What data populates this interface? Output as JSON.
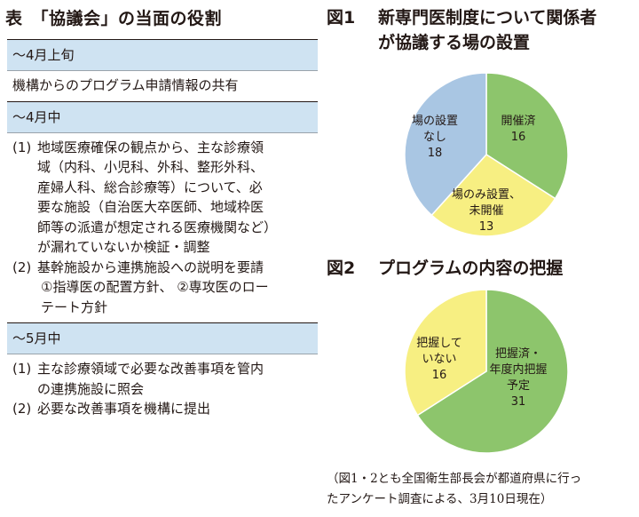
{
  "table": {
    "title": "表　「協議会」の当面の役割",
    "sections": [
      {
        "header": "〜4月上旬",
        "items": [
          {
            "num": "",
            "lines": [
              "機構からのプログラム申請情報の共有"
            ]
          }
        ]
      },
      {
        "header": "〜4月中",
        "items": [
          {
            "num": "(1)",
            "lines": [
              "地域医療確保の観点から、主な診療領",
              "域（内科、小児科、外科、整形外科、",
              "産婦人科、総合診療等）について、必",
              "要な施設（自治医大卒医師、地域枠医",
              "師等の派遣が想定される医療機関など）",
              "が漏れていないか検証・調整"
            ]
          },
          {
            "num": "(2)",
            "lines": [
              "基幹施設から連携施設への説明を要請",
              "①指導医の配置方針、 ②専攻医のロー",
              "テート方針"
            ]
          }
        ]
      },
      {
        "header": "〜5月中",
        "items": [
          {
            "num": "(1)",
            "lines": [
              "主な診療領域で必要な改善事項を管内",
              "の連携施設に照会"
            ]
          },
          {
            "num": "(2)",
            "lines": [
              "必要な改善事項を機構に提出"
            ]
          }
        ]
      }
    ]
  },
  "figure1": {
    "number": "図1",
    "title_lines": [
      "新専門医制度について関係者",
      "が協議する場の設置"
    ]
  },
  "figure2": {
    "number": "図2",
    "title_lines": [
      "プログラムの内容の把握"
    ]
  },
  "note_lines": [
    "（図1・2とも全国衛生部長会が都道府県に行っ",
    "たアンケート調査による、3月10日現在）"
  ],
  "chart_data": [
    {
      "type": "pie",
      "title": "新専門医制度について関係者が協議する場の設置",
      "slices": [
        {
          "label_lines": [
            "開催済",
            "16"
          ],
          "label": "開催済",
          "value": 16,
          "color": "#8dc56c"
        },
        {
          "label_lines": [
            "場のみ設置、",
            "未開催",
            "13"
          ],
          "label": "場のみ設置、未開催",
          "value": 13,
          "color": "#f7ef82"
        },
        {
          "label_lines": [
            "場の設置",
            "なし",
            "18"
          ],
          "label": "場の設置なし",
          "value": 18,
          "color": "#a9c6e3"
        }
      ]
    },
    {
      "type": "pie",
      "title": "プログラムの内容の把握",
      "slices": [
        {
          "label_lines": [
            "把握済・",
            "年度内把握",
            "予定",
            "31"
          ],
          "label": "把握済・年度内把握予定",
          "value": 31,
          "color": "#8dc56c"
        },
        {
          "label_lines": [
            "把握して",
            "いない",
            "16"
          ],
          "label": "把握していない",
          "value": 16,
          "color": "#f7ef82"
        }
      ]
    }
  ]
}
